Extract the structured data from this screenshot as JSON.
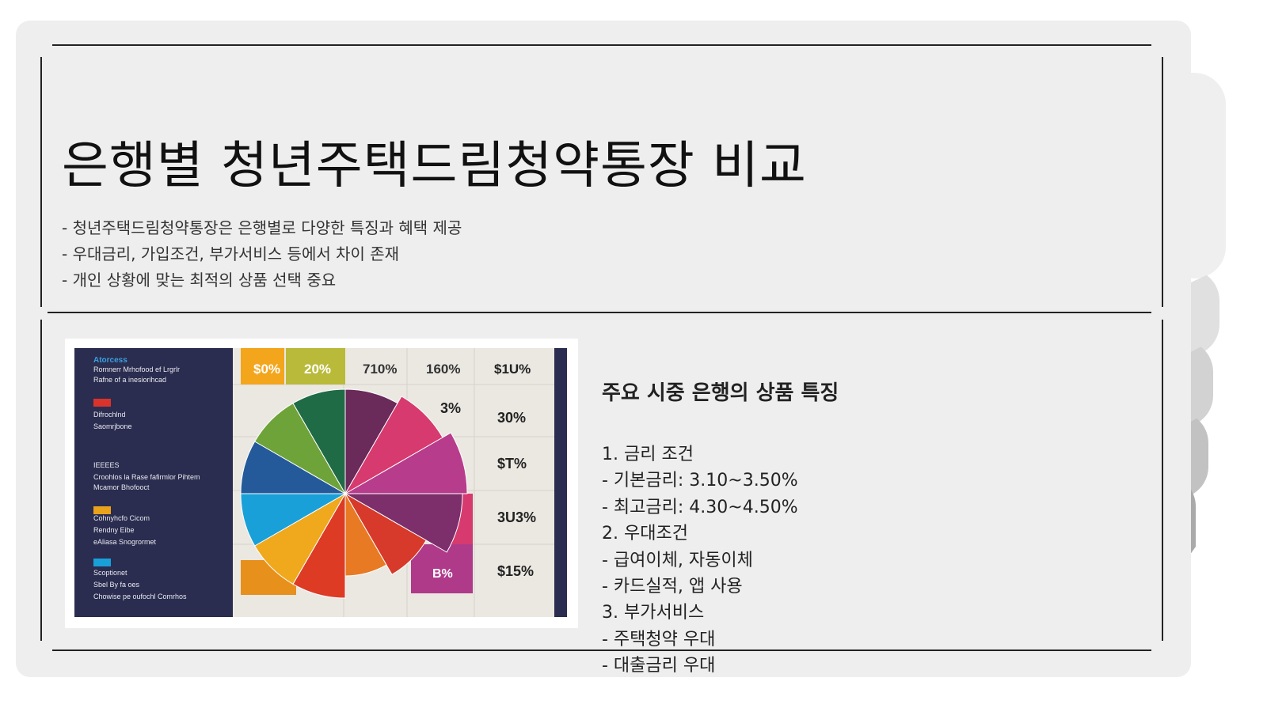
{
  "slide": {
    "title": "은행별 청년주택드림청약통장 비교",
    "bullets": [
      "- 청년주택드림청약통장은 은행별로 다양한 특징과 혜택 제공",
      "- 우대금리, 가입조건, 부가서비스 등에서 차이 존재",
      "- 개인 상황에 맞는 최적의 상품 선택 중요"
    ],
    "section_title": "주요 시중 은행의 상품 특징",
    "details": [
      "1. 금리 조건",
      "- 기본금리: 3.10~3.50%",
      "- 최고금리: 4.30~4.50%",
      "2. 우대조건",
      "- 급여이체, 자동이체",
      "- 카드실적, 앱 사용",
      "3. 부가서비스",
      "- 주택청약 우대",
      "- 대출금리 우대"
    ]
  },
  "figure": {
    "top_labels": [
      "$0%",
      "20%",
      "710%",
      "160%",
      "$1U%"
    ],
    "right_labels": [
      "3%",
      "30%",
      "$T%",
      "3U3%",
      "$15%"
    ],
    "inner_label": "B%",
    "legend_heading": "Atorcess",
    "legend_lines": [
      "Romnerr Mrhofood ef Lrgrlr",
      "Rafne of a inesiorihcad",
      "Difrochlnd",
      "Saomrjbone",
      "IEEEES",
      "Croohlos la Rase fafirmlor Pihtem",
      "Mcamor Bhofooct",
      "Cohnyhcfo Cicom",
      "Rendny Eibe",
      "eAliasa Snogrormet",
      "Scoptionet",
      "Sbel By fa oes",
      "Chowise pe oufochl Comrhos"
    ],
    "colors": {
      "panel": "#2a2d4f",
      "slices": [
        "#6a2a5a",
        "#d63a6e",
        "#b83c8c",
        "#7c2f6b",
        "#d73a2a",
        "#e87a24",
        "#dd3b24",
        "#f0a81c",
        "#1aa0d8",
        "#245a9a",
        "#6ea33a",
        "#1f6b45"
      ]
    }
  }
}
